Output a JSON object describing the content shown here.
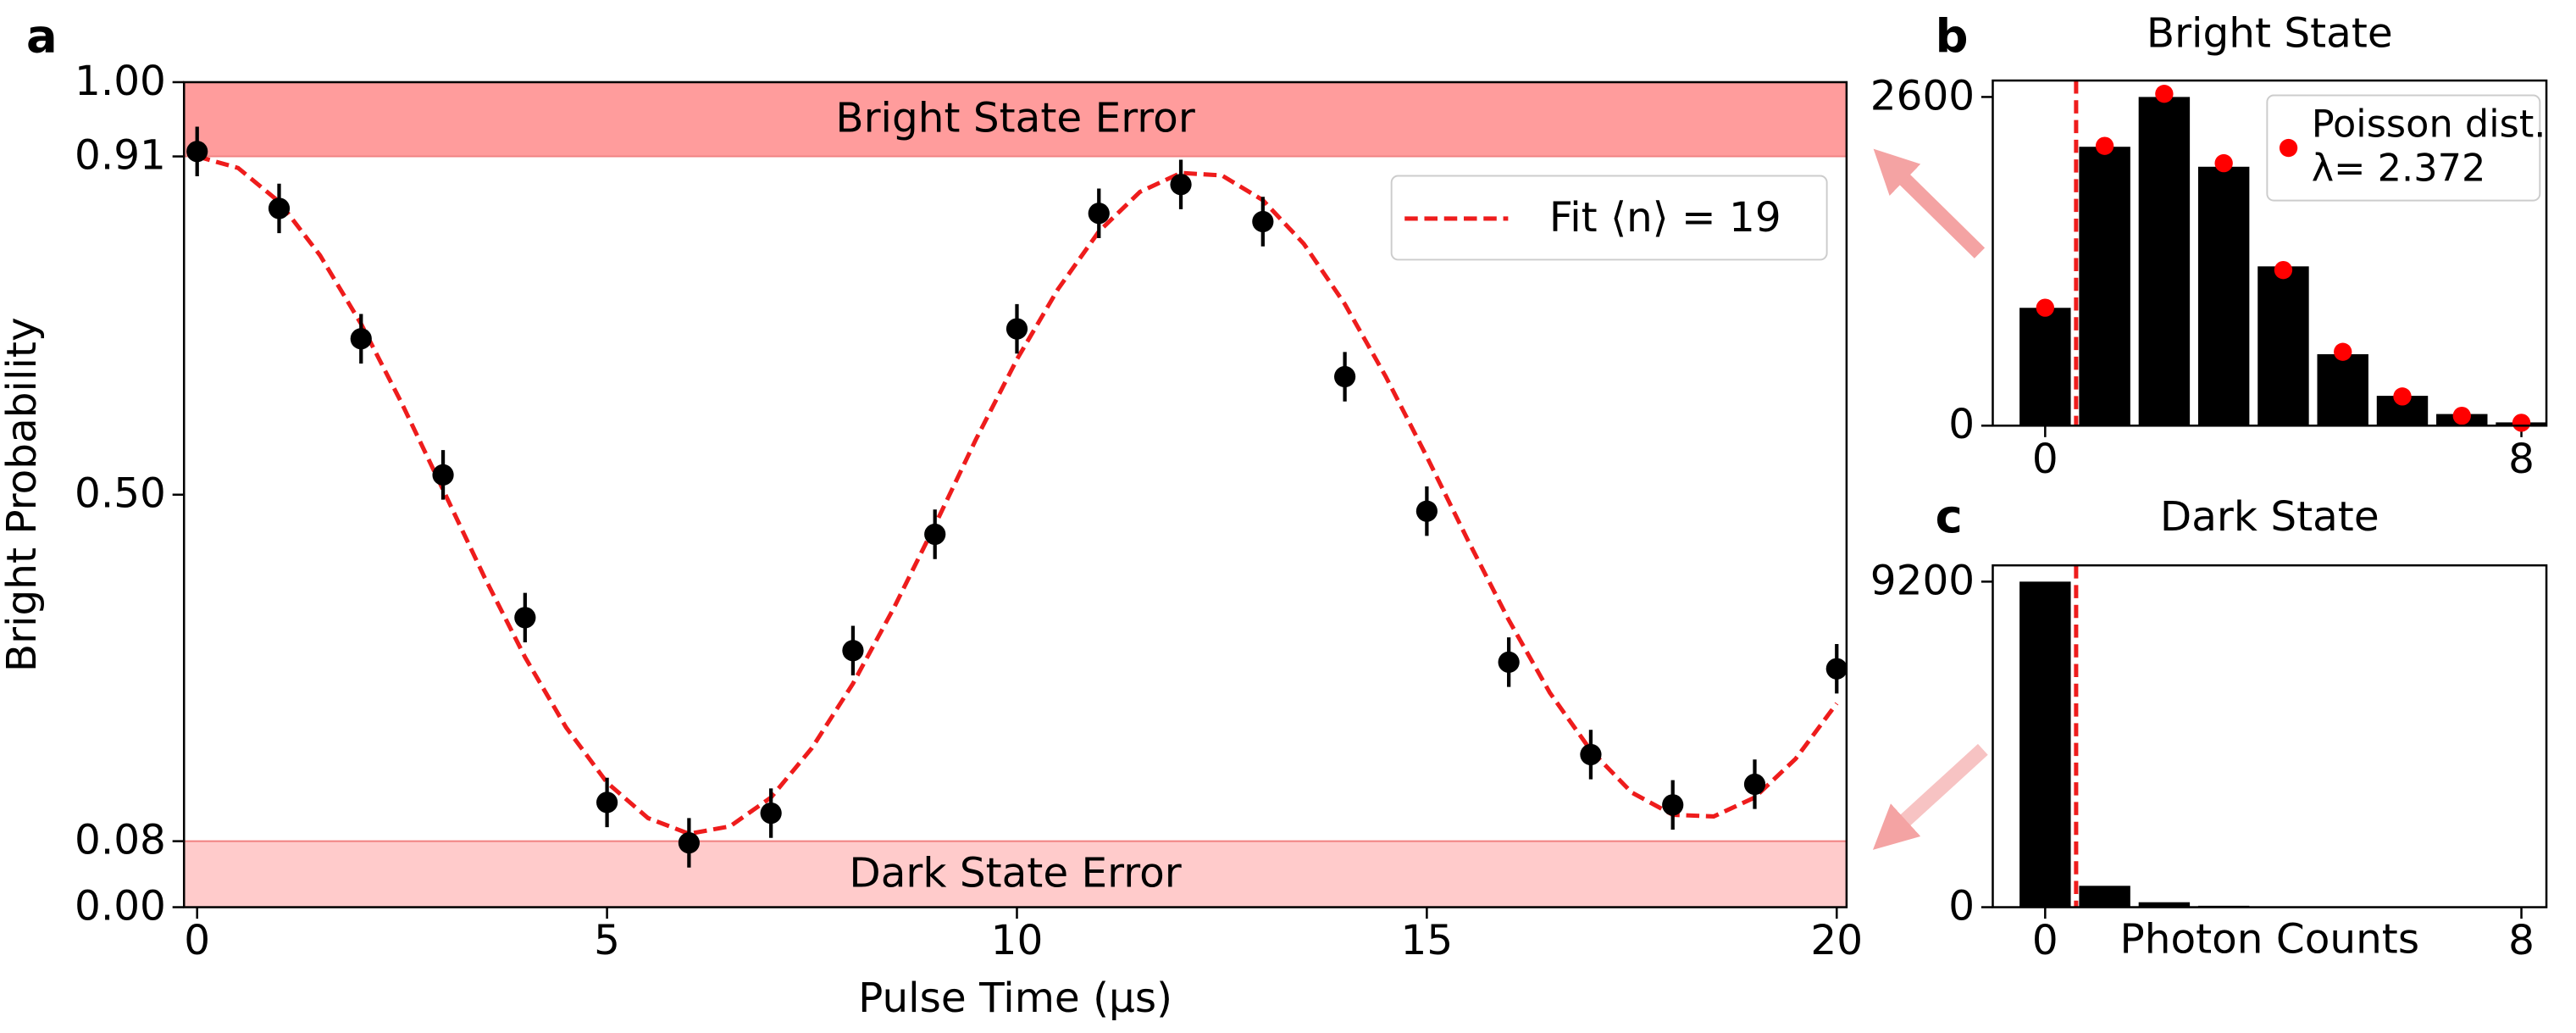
{
  "chart_data": [
    {
      "type": "scatter",
      "panel_label": "a",
      "xlabel": "Pulse Time (μs)",
      "ylabel": "Bright Probability",
      "x": [
        0,
        1,
        2,
        3,
        4,
        5,
        6,
        7,
        8,
        9,
        10,
        11,
        12,
        13,
        14,
        15,
        16,
        17,
        18,
        19,
        20
      ],
      "values": [
        0.916,
        0.847,
        0.689,
        0.524,
        0.351,
        0.127,
        0.078,
        0.114,
        0.311,
        0.452,
        0.701,
        0.841,
        0.876,
        0.831,
        0.643,
        0.48,
        0.297,
        0.185,
        0.124,
        0.149,
        0.289
      ],
      "errors": [
        0.03,
        0.03,
        0.03,
        0.03,
        0.03,
        0.03,
        0.03,
        0.03,
        0.03,
        0.03,
        0.03,
        0.03,
        0.03,
        0.03,
        0.03,
        0.03,
        0.03,
        0.03,
        0.03,
        0.03,
        0.03
      ],
      "color": "#000000",
      "fit": {
        "name": "Fit ⟨n⟩ = 19",
        "color": "#ee1c1c",
        "x": [
          0,
          0.5,
          1,
          1.5,
          2,
          2.5,
          3,
          3.5,
          4,
          4.5,
          5,
          5.5,
          6,
          6.5,
          7,
          7.5,
          8,
          8.5,
          9,
          9.5,
          10,
          10.5,
          11,
          11.5,
          12,
          12.5,
          13,
          13.5,
          14,
          14.5,
          15,
          15.5,
          16,
          16.5,
          17,
          17.5,
          18,
          18.5,
          19,
          19.5,
          20
        ],
        "values": [
          0.91,
          0.896,
          0.855,
          0.79,
          0.707,
          0.61,
          0.506,
          0.401,
          0.303,
          0.218,
          0.151,
          0.108,
          0.089,
          0.098,
          0.133,
          0.193,
          0.271,
          0.363,
          0.463,
          0.567,
          0.664,
          0.749,
          0.819,
          0.867,
          0.89,
          0.887,
          0.857,
          0.804,
          0.731,
          0.643,
          0.546,
          0.445,
          0.348,
          0.26,
          0.19,
          0.139,
          0.112,
          0.11,
          0.133,
          0.18,
          0.247
        ]
      },
      "regions": [
        {
          "label": "Bright State Error",
          "range": [
            0.91,
            1.0
          ],
          "color": "#ff9c9c"
        },
        {
          "label": "Dark State Error",
          "range": [
            0,
            0.08
          ],
          "color": "#ffcbcb"
        }
      ],
      "legend": "upper right",
      "xlim": [
        -0.16,
        20.12
      ],
      "ylim": [
        0,
        1
      ],
      "xticks": [
        0,
        5,
        10,
        15,
        20
      ],
      "yticks": [
        {
          "value": 0,
          "label": "0.00"
        },
        {
          "value": 0.08,
          "label": "0.08"
        },
        {
          "value": 0.5,
          "label": "0.50"
        },
        {
          "value": 0.91,
          "label": "0.91"
        },
        {
          "value": 1,
          "label": "1.00"
        }
      ]
    },
    {
      "type": "bar",
      "panel_label": "b",
      "title": "Bright State",
      "x": [
        0,
        1,
        2,
        3,
        4,
        5,
        6,
        7,
        8
      ],
      "values": [
        932,
        2206,
        2600,
        2048,
        1260,
        565,
        236,
        92,
        26
      ],
      "color": "#000000",
      "threshold": 0.52,
      "threshold_color": "#ee1c1c",
      "overlay": {
        "name": "Poisson dist.",
        "color": "#ff0000",
        "values": [
          933,
          2213,
          2625,
          2076,
          1231,
          584,
          231,
          78,
          23
        ]
      },
      "annotation": "λ= 2.372",
      "legend": "upper right",
      "xlim": [
        -0.88,
        8.42
      ],
      "ylim": [
        0,
        2730
      ],
      "xticks": [
        0,
        8
      ],
      "yticks": [
        0,
        2600
      ]
    },
    {
      "type": "bar",
      "panel_label": "c",
      "title": "Dark State",
      "xlabel": "Photon Counts",
      "x": [
        0,
        1,
        2,
        3,
        4,
        5,
        6,
        7,
        8
      ],
      "values": [
        9200,
        604,
        140,
        40,
        15,
        10,
        5,
        3,
        2
      ],
      "color": "#000000",
      "threshold": 0.52,
      "threshold_color": "#ee1c1c",
      "xlim": [
        -0.88,
        8.42
      ],
      "ylim": [
        0,
        9660
      ],
      "xticks": [
        0,
        8
      ],
      "yticks": [
        0,
        9200
      ]
    }
  ]
}
